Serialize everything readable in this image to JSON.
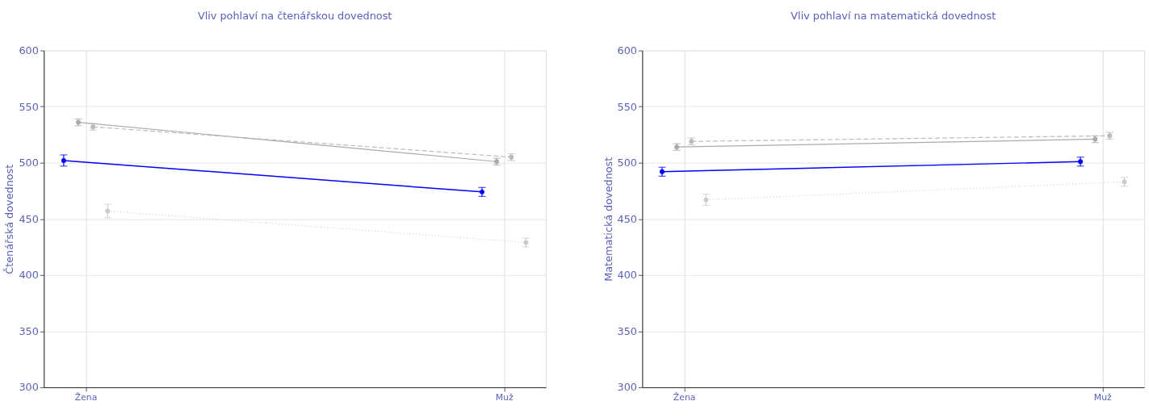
{
  "chart_data": [
    {
      "type": "line",
      "title": "Vliv pohlaví na čtenářskou dovednost",
      "ylabel": "Čtenářská dovednost",
      "categories": [
        "Žena",
        "Muž"
      ],
      "ylim": [
        300,
        600
      ],
      "yticks": [
        300,
        350,
        400,
        450,
        500,
        550,
        600
      ],
      "grid": true,
      "marker": "circle",
      "series": [
        {
          "color": "#0000ff",
          "line_style": "solid",
          "values": [
            502,
            474
          ],
          "errors": [
            5,
            4
          ]
        },
        {
          "color": "#aaaaaa",
          "line_style": "solid",
          "values": [
            536,
            501
          ],
          "errors": [
            3,
            3
          ]
        },
        {
          "color": "#bbbbbb",
          "line_style": "dashed",
          "values": [
            532,
            505
          ],
          "errors": [
            3,
            3
          ]
        },
        {
          "color": "#cccccc",
          "line_style": "dotted",
          "values": [
            457,
            429
          ],
          "errors": [
            6,
            4
          ]
        }
      ]
    },
    {
      "type": "line",
      "title": "Vliv pohlaví na matematická dovednost",
      "ylabel": "Matematická dovednost",
      "categories": [
        "Žena",
        "Muž"
      ],
      "ylim": [
        300,
        600
      ],
      "yticks": [
        300,
        350,
        400,
        450,
        500,
        550,
        600
      ],
      "grid": true,
      "marker": "circle",
      "series": [
        {
          "color": "#0000ff",
          "line_style": "solid",
          "values": [
            492,
            501
          ],
          "errors": [
            4,
            4
          ]
        },
        {
          "color": "#aaaaaa",
          "line_style": "solid",
          "values": [
            514,
            521
          ],
          "errors": [
            3,
            3
          ]
        },
        {
          "color": "#bbbbbb",
          "line_style": "dashed",
          "values": [
            519,
            524
          ],
          "errors": [
            3,
            3
          ]
        },
        {
          "color": "#cccccc",
          "line_style": "dotted",
          "values": [
            467,
            483
          ],
          "errors": [
            5,
            4
          ]
        }
      ]
    }
  ]
}
